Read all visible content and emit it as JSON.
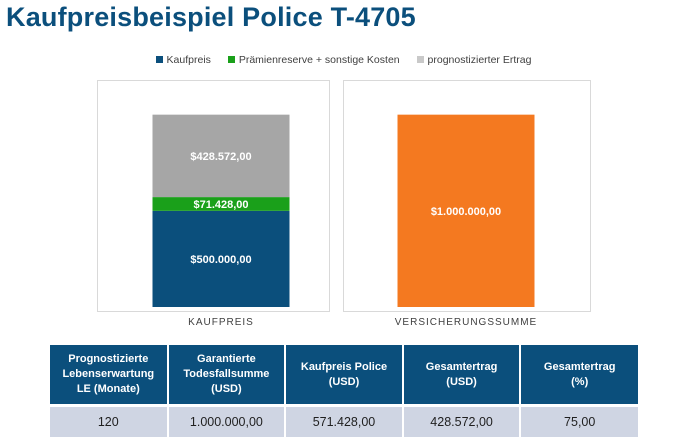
{
  "page": {
    "title": "Kaufpreisbeispiel Police T-4705"
  },
  "chart_data": {
    "type": "bar",
    "stacked": true,
    "categories": [
      "KAUFPREIS",
      "VERSICHERUNGSSUMME"
    ],
    "series": [
      {
        "name": "Kaufpreis",
        "color": "#0b4f7c",
        "values": [
          500000,
          null
        ],
        "labels": [
          "$500.000,00",
          null
        ]
      },
      {
        "name": "Prämienreserve + sonstige Kosten",
        "color": "#1aa01a",
        "values": [
          71428,
          null
        ],
        "labels": [
          "$71.428,00",
          null
        ]
      },
      {
        "name": "prognostizierter Ertrag",
        "color": "#a6a6a6",
        "values": [
          428572,
          null
        ],
        "labels": [
          "$428.572,00",
          null
        ]
      },
      {
        "name": "Versicherungssumme",
        "color": "#f47920",
        "values": [
          null,
          1000000
        ],
        "labels": [
          null,
          "$1.000.000,00"
        ]
      }
    ],
    "legend_entries": [
      {
        "label": "Kaufpreis",
        "color": "#0b4f7c"
      },
      {
        "label": "Prämienreserve + sonstige Kosten",
        "color": "#1aa01a"
      },
      {
        "label": "prognostizierter Ertrag",
        "color": "#c9c9c9"
      }
    ],
    "ylim": [
      0,
      1175000
    ],
    "legend_position": "top-center",
    "grid": false
  },
  "table": {
    "headers": [
      [
        "Prognostizierte",
        "Lebenserwartung",
        "LE (Monate)"
      ],
      [
        "Garantierte",
        "Todesfallsumme",
        "(USD)"
      ],
      [
        "Kaufpreis Police",
        "(USD)"
      ],
      [
        "Gesamtertrag",
        "(USD)"
      ],
      [
        "Gesamtertrag",
        "(%)"
      ]
    ],
    "row": [
      "120",
      "1.000.000,00",
      "571.428,00",
      "428.572,00",
      "75,00"
    ]
  }
}
